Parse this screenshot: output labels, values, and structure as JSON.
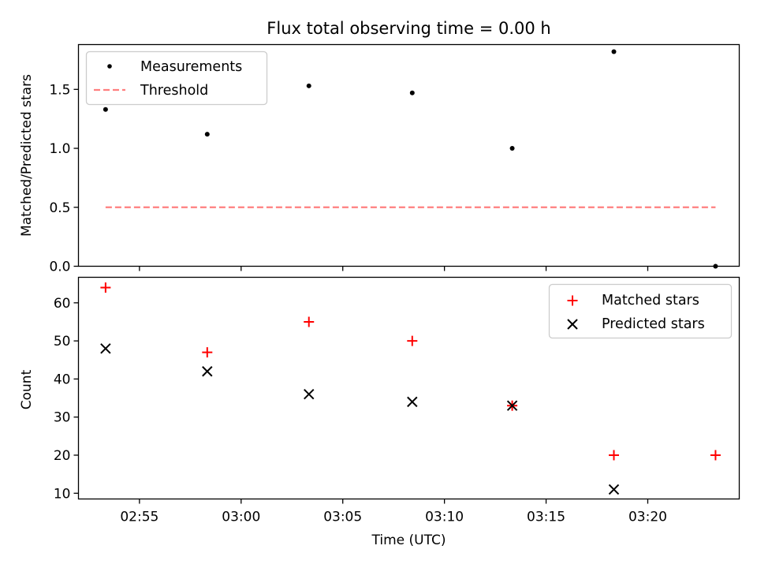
{
  "chart_data": [
    {
      "type": "scatter",
      "title": "Flux total observing time = 0.00 h",
      "xlabel": "",
      "ylabel": "Matched/Predicted stars",
      "xlim": [
        "02:52:00",
        "03:24:30"
      ],
      "ylim": [
        0,
        1.88
      ],
      "yticks": [
        0.0,
        0.5,
        1.0,
        1.5
      ],
      "ytick_labels": [
        "0.0",
        "0.5",
        "1.0",
        "1.5"
      ],
      "legend": {
        "placement": "upper-left",
        "entries": [
          "Measurements",
          "Threshold"
        ]
      },
      "series": [
        {
          "name": "Measurements",
          "marker": "dot",
          "color": "#000000",
          "x": [
            "02:53:20",
            "02:58:20",
            "03:03:20",
            "03:08:25",
            "03:13:20",
            "03:18:20",
            "03:23:20"
          ],
          "y": [
            1.33,
            1.12,
            1.53,
            1.47,
            1.0,
            1.82,
            0.0
          ]
        },
        {
          "name": "Threshold",
          "line": "dashed",
          "color": "#ff7f7f",
          "x": [
            "02:53:20",
            "03:23:20"
          ],
          "y": [
            0.5,
            0.5
          ]
        }
      ]
    },
    {
      "type": "scatter",
      "title": "",
      "xlabel": "Time (UTC)",
      "ylabel": "Count",
      "xlim": [
        "02:52:00",
        "03:24:30"
      ],
      "ylim": [
        8.5,
        66.7
      ],
      "yticks": [
        10,
        20,
        30,
        40,
        50,
        60
      ],
      "ytick_labels": [
        "10",
        "20",
        "30",
        "40",
        "50",
        "60"
      ],
      "xticks": [
        "02:55",
        "03:00",
        "03:05",
        "03:10",
        "03:15",
        "03:20"
      ],
      "legend": {
        "placement": "upper-right",
        "entries": [
          "Matched stars",
          "Predicted stars"
        ]
      },
      "series": [
        {
          "name": "Matched stars",
          "marker": "plus",
          "color": "#ff0000",
          "x": [
            "02:53:20",
            "02:58:20",
            "03:03:20",
            "03:08:25",
            "03:13:20",
            "03:18:20",
            "03:23:20"
          ],
          "y": [
            64,
            47,
            55,
            50,
            33,
            20,
            20
          ]
        },
        {
          "name": "Predicted stars",
          "marker": "x",
          "color": "#000000",
          "x": [
            "02:53:20",
            "02:58:20",
            "03:03:20",
            "03:08:25",
            "03:13:20",
            "03:18:20"
          ],
          "y": [
            48,
            42,
            36,
            34,
            33,
            11
          ]
        }
      ]
    }
  ]
}
